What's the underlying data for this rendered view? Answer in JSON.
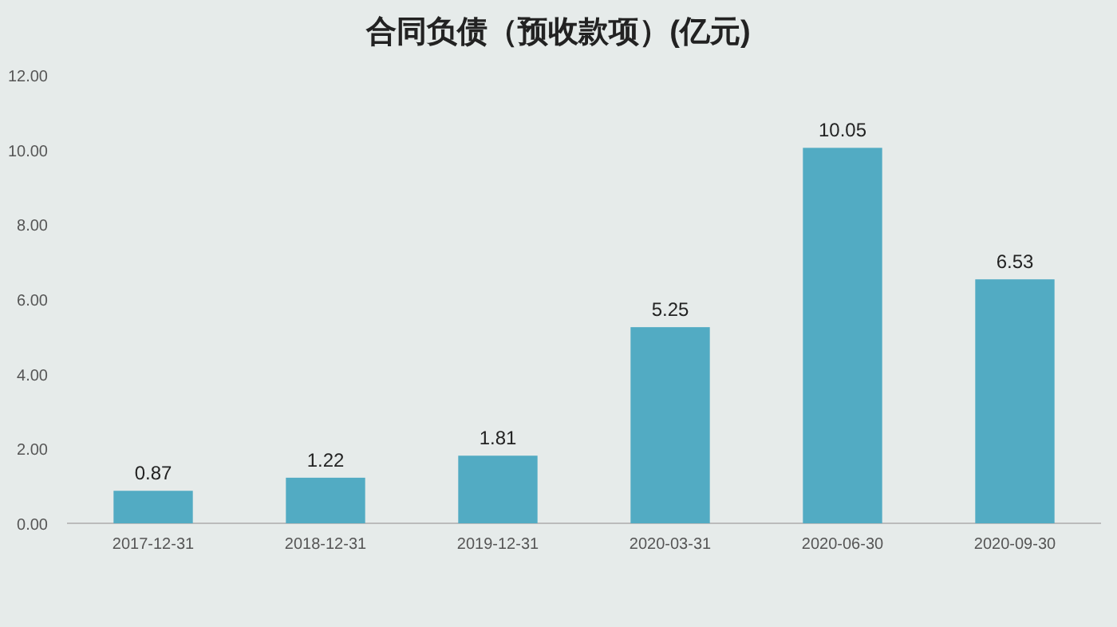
{
  "chart_data": {
    "type": "bar",
    "title": "合同负债（预收款项）(亿元)",
    "categories": [
      "2017-12-31",
      "2018-12-31",
      "2019-12-31",
      "2020-03-31",
      "2020-06-30",
      "2020-09-30"
    ],
    "values": [
      0.87,
      1.22,
      1.81,
      5.25,
      10.05,
      6.53
    ],
    "color": "#52abc3",
    "ylim": [
      0,
      12
    ],
    "yticks": [
      {
        "value": 0,
        "label": "0.00"
      },
      {
        "value": 2,
        "label": "2.00"
      },
      {
        "value": 4,
        "label": "4.00"
      },
      {
        "value": 6,
        "label": "6.00"
      },
      {
        "value": 8,
        "label": "8.00"
      },
      {
        "value": 10,
        "label": "10.00"
      },
      {
        "value": 12,
        "label": "12.00"
      }
    ],
    "data_labels": true,
    "grid": false
  }
}
